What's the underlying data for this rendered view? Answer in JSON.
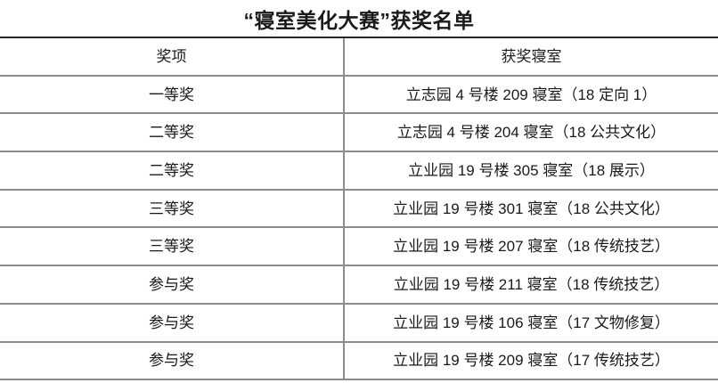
{
  "title": "“寝室美化大赛”获奖名单",
  "table": {
    "headers": [
      "奖项",
      "获奖寝室"
    ],
    "rows": [
      {
        "award": "一等奖",
        "room": "立志园 4 号楼 209 寝室（18 定向 1）"
      },
      {
        "award": "二等奖",
        "room": "立志园 4 号楼 204 寝室（18 公共文化）"
      },
      {
        "award": "二等奖",
        "room": "立业园 19 号楼 305 寝室（18 展示）"
      },
      {
        "award": "三等奖",
        "room": "立业园 19 号楼 301 寝室（18 公共文化）"
      },
      {
        "award": "三等奖",
        "room": "立业园 19 号楼 207 寝室（18 传统技艺）"
      },
      {
        "award": "参与奖",
        "room": "立业园 19 号楼 211 寝室（18 传统技艺）"
      },
      {
        "award": "参与奖",
        "room": "立业园 19 号楼 106 寝室（17 文物修复）"
      },
      {
        "award": "参与奖",
        "room": "立业园 19 号楼 209 寝室（17 传统技艺）"
      }
    ]
  },
  "colors": {
    "text": "#1a1a1a",
    "outer_border": "#262626",
    "grid_line": "#8c8c8c"
  }
}
